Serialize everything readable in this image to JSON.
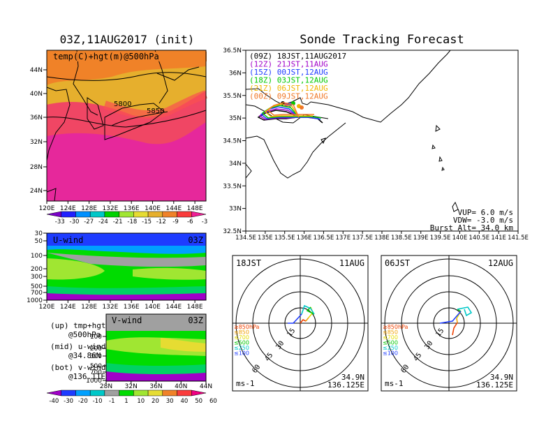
{
  "map500": {
    "title": "03Z,11AUG2017 (init)",
    "label": "temp(C)+hgt(m)@500hPa",
    "lat_ticks": [
      "44N",
      "40N",
      "36N",
      "32N",
      "28N",
      "24N"
    ],
    "lon_ticks": [
      "120E",
      "124E",
      "128E",
      "132E",
      "136E",
      "140E",
      "144E",
      "148E"
    ],
    "contours": [
      "5800",
      "5850"
    ],
    "colorbar": [
      "-33",
      "-30",
      "-27",
      "-24",
      "-21",
      "-18",
      "-15",
      "-12",
      "-9",
      "-6",
      "-3"
    ],
    "colorbar_colors": [
      "#7a00c8",
      "#2020ff",
      "#0090ff",
      "#00c8c8",
      "#00d200",
      "#a0e632",
      "#e6dc32",
      "#e6af2d",
      "#f08228",
      "#fa3c3c",
      "#f01e96"
    ]
  },
  "uwind": {
    "label": "U-wind",
    "time": "03Z",
    "y_ticks": [
      "30",
      "50",
      "100",
      "200",
      "300",
      "500",
      "700",
      "1000"
    ],
    "x_ticks": [
      "120E",
      "124E",
      "128E",
      "132E",
      "136E",
      "140E",
      "144E",
      "148E"
    ]
  },
  "vwind": {
    "label": "V-wind",
    "time": "03Z",
    "y_ticks": [
      "200",
      "300",
      "500",
      "700",
      "1000"
    ],
    "y_ticks_top": "100",
    "x_ticks": [
      "28N",
      "32N",
      "36N",
      "40N",
      "44N"
    ]
  },
  "legend_text": {
    "up1": "(up) tmp+hgt",
    "up2": "@500hPa",
    "mid1": "(mid) u-wind",
    "mid2": "@34.86N",
    "bot1": "(bot) v-wind",
    "bot2": "@136.11E"
  },
  "wind_colorbar": {
    "labels": [
      "-40",
      "-30",
      "-20",
      "-10",
      "-1",
      "1",
      "10",
      "20",
      "30",
      "40",
      "50",
      "60"
    ],
    "colors": [
      "#a000c8",
      "#1e3cff",
      "#00a0ff",
      "#00c8c8",
      "#a0a0a0",
      "#00dc00",
      "#a0e632",
      "#e6dc32",
      "#f08228",
      "#fa3c3c",
      "#f00082"
    ]
  },
  "track": {
    "title": "Sonde Tracking Forecast",
    "lat_ticks": [
      "36.5N",
      "36N",
      "35.5N",
      "35N",
      "34.5N",
      "34N",
      "33.5N",
      "33N",
      "32.5N"
    ],
    "lon_ticks": [
      "134.5E",
      "135E",
      "135.5E",
      "136E",
      "136.5E",
      "137E",
      "137.5E",
      "138E",
      "138.5E",
      "139E",
      "139.5E",
      "140E",
      "140.5E",
      "141E",
      "141.5E"
    ],
    "legend": [
      {
        "text": "(09Z)  18JST,11AUG2017",
        "color": "#000000"
      },
      {
        "text": "(12Z)  21JST,11AUG",
        "color": "#a000c8"
      },
      {
        "text": "(15Z)  00JST,12AUG",
        "color": "#1e3cff"
      },
      {
        "text": "(18Z)  03JST,12AUG",
        "color": "#00c800"
      },
      {
        "text": "(21Z)  06JST,12AUG",
        "color": "#f0b400"
      },
      {
        "text": "(00Z)  09JST,12AUG",
        "color": "#f07828"
      }
    ],
    "params": {
      "vup": "VUP= 6.0 m/s",
      "vdw": "VDW= -3.0 m/s",
      "burst": "Burst Alt= 34.0 km"
    }
  },
  "hodo1": {
    "left": "18JST",
    "right": "11AUG",
    "loc1": "34.9N",
    "loc2": "136.125E",
    "unit": "ms-1",
    "rings": [
      "15",
      "30",
      "45",
      "60"
    ],
    "levels": [
      {
        "text": "≥850hPa",
        "color": "#f04000"
      },
      {
        "text": "≤850",
        "color": "#f0a000"
      },
      {
        "text": "≤700",
        "color": "#e6dc00"
      },
      {
        "text": "≤500",
        "color": "#00c800"
      },
      {
        "text": "≤250",
        "color": "#00c8c8"
      },
      {
        "text": "≤100",
        "color": "#1e3cff"
      }
    ]
  },
  "hodo2": {
    "left": "06JST",
    "right": "12AUG",
    "loc1": "34.9N",
    "loc2": "136.125E",
    "unit": "ms-1",
    "rings": [
      "15",
      "30",
      "45",
      "60"
    ]
  }
}
